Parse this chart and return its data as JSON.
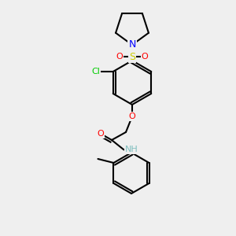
{
  "background_color": "#efefef",
  "bond_color": "#000000",
  "bond_width": 1.5,
  "atom_colors": {
    "N": "#0000ff",
    "O": "#ff0000",
    "S": "#cccc00",
    "Cl": "#00cc00",
    "C": "#000000",
    "H": "#7fbfbf"
  },
  "font_size": 8,
  "fig_size": [
    3.0,
    3.0
  ],
  "dpi": 100
}
